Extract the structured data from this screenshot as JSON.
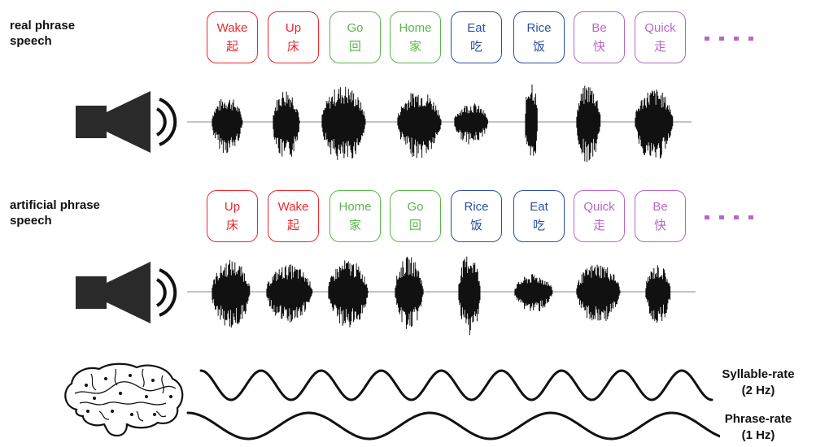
{
  "rows": {
    "real": {
      "label": "real phrase\nspeech",
      "syllables": [
        {
          "en": "Wake",
          "zh": "起",
          "color": "#e8282d"
        },
        {
          "en": "Up",
          "zh": "床",
          "color": "#e8282d"
        },
        {
          "en": "Go",
          "zh": "回",
          "color": "#5ab54a"
        },
        {
          "en": "Home",
          "zh": "家",
          "color": "#5ab54a"
        },
        {
          "en": "Eat",
          "zh": "吃",
          "color": "#2b4fa3"
        },
        {
          "en": "Rice",
          "zh": "饭",
          "color": "#2b4fa3"
        },
        {
          "en": "Be",
          "zh": "快",
          "color": "#b867c5"
        },
        {
          "en": "Quick",
          "zh": "走",
          "color": "#b867c5"
        }
      ]
    },
    "artificial": {
      "label": "artificial phrase\nspeech",
      "syllables": [
        {
          "en": "Up",
          "zh": "床",
          "color": "#e8282d"
        },
        {
          "en": "Wake",
          "zh": "起",
          "color": "#e8282d"
        },
        {
          "en": "Home",
          "zh": "家",
          "color": "#5ab54a"
        },
        {
          "en": "Go",
          "zh": "回",
          "color": "#5ab54a"
        },
        {
          "en": "Rice",
          "zh": "饭",
          "color": "#2b4fa3"
        },
        {
          "en": "Eat",
          "zh": "吃",
          "color": "#2b4fa3"
        },
        {
          "en": "Quick",
          "zh": "走",
          "color": "#b867c5"
        },
        {
          "en": "Be",
          "zh": "快",
          "color": "#b867c5"
        }
      ]
    }
  },
  "continuation_dots_color": "#b867c5",
  "oscillations": {
    "syllable_rate": {
      "line1": "Syllable-rate",
      "line2": "(2 Hz)",
      "frequency_hz": 2
    },
    "phrase_rate": {
      "line1": "Phrase-rate",
      "line2": "(1 Hz)",
      "frequency_hz": 1
    }
  },
  "icons": {
    "speaker": "speaker-icon",
    "brain": "brain-icon"
  }
}
